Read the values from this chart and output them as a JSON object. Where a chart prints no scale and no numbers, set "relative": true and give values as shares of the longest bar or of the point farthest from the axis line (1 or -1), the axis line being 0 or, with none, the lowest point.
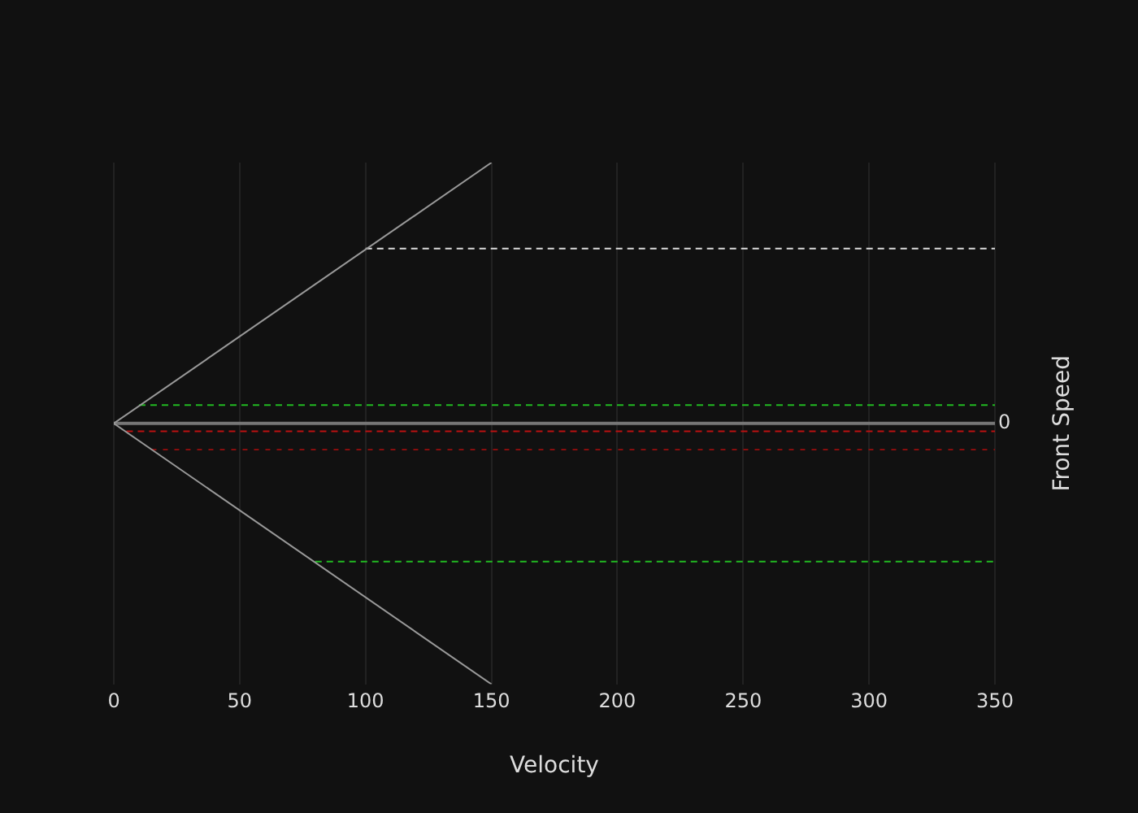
{
  "chart_data": {
    "type": "line",
    "xlabel": "Velocity",
    "ylabel": "Front Speed",
    "relative": true,
    "grid": "x",
    "legend": false,
    "marker": "none",
    "xlim": [
      0,
      350
    ],
    "xticks": [
      0,
      50,
      100,
      150,
      200,
      250,
      300,
      350
    ],
    "annotations": [
      {
        "text": "0",
        "x": 350,
        "y": 0
      }
    ],
    "series": [
      {
        "color": "#999999",
        "x": [
          0,
          150
        ],
        "values": [
          0,
          1
        ],
        "line_style": "solid"
      },
      {
        "color": "#999999",
        "x": [
          0,
          150
        ],
        "values": [
          0,
          -1
        ],
        "line_style": "solid"
      },
      {
        "color": "#777777",
        "x": [
          0,
          350
        ],
        "values": [
          0,
          0
        ],
        "line_style": "solid"
      },
      {
        "color": "#dddddd",
        "x": [
          100,
          350
        ],
        "values": [
          0.67,
          0.67
        ],
        "line_style": "dashed"
      },
      {
        "color": "#22bb22",
        "x": [
          10,
          350
        ],
        "values": [
          0.07,
          0.07
        ],
        "line_style": "dashed"
      },
      {
        "color": "#bb1111",
        "x": [
          5,
          350
        ],
        "values": [
          -0.03,
          -0.03
        ],
        "line_style": "dashed"
      },
      {
        "color": "#880e0e",
        "x": [
          15,
          350
        ],
        "values": [
          -0.1,
          -0.1
        ],
        "line_style": "dotted"
      },
      {
        "color": "#22bb22",
        "x": [
          80,
          350
        ],
        "values": [
          -0.53,
          -0.53
        ],
        "line_style": "dashed"
      }
    ]
  }
}
